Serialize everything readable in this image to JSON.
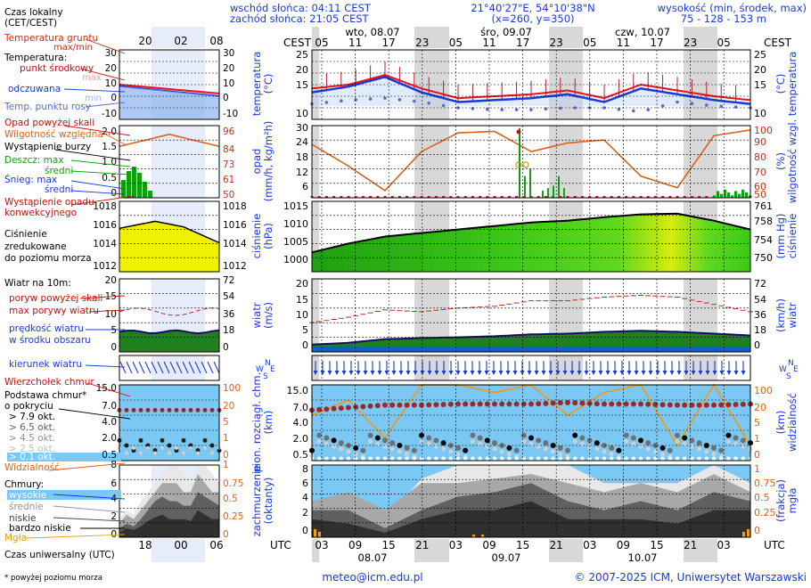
{
  "header": {
    "sunrise": "wschód słońca: 04:11 CEST",
    "sunset": "zachód słońca: 21:05 CEST",
    "coords": "21°40'27\"E, 54°10'38\"N",
    "grid": "(x=260, y=350)",
    "altitude_label": "wysokość (min, środek, max)",
    "altitude_values": "75 - 128 - 153 m"
  },
  "time_axis": {
    "cest_label": "CEST",
    "utc_label": "UTC",
    "top_hours": [
      "05",
      "11",
      "17",
      "23",
      "05",
      "11",
      "17",
      "23",
      "05",
      "11",
      "17",
      "23",
      "05"
    ],
    "bottom_hours": [
      "03",
      "09",
      "15",
      "21",
      "03",
      "09",
      "15",
      "21",
      "03",
      "09",
      "15",
      "21",
      "03"
    ],
    "top_days": [
      "wto, 08.07",
      "śro, 09.07",
      "czw, 10.07"
    ],
    "bottom_days": [
      "08.07",
      "09.07",
      "10.07"
    ]
  },
  "legend": {
    "local_time": "Czas lokalny",
    "local_time_sub": "(CET/CEST)",
    "legend_hours": [
      "20",
      "02",
      "08"
    ],
    "utc_hours": [
      "18",
      "00",
      "06"
    ],
    "soil_temp": "Temperatura gruntu",
    "soil_temp_sub": "max/min",
    "temperature": "Temperatura:",
    "temp_mid": "punkt środkowy",
    "temp_max": "max",
    "temp_min": "min",
    "temp_feels": "odczuwana",
    "dew_point": "Temp. punktu rosy",
    "precip_threshold": "Opad powyżej skali",
    "humidity": "Wilgotność względna",
    "storm": "Wystąpienie burzy",
    "rain_max": "Deszcz: max",
    "rain_mid": "średni",
    "snow_max": "Śnieg:  max",
    "snow_mid": "średni",
    "convective": "Wystąpienie opadu",
    "convective_2": "konwekcyjnego",
    "pressure_1": "Ciśnienie",
    "pressure_2": "zredukowane",
    "pressure_3": "do poziomu morza",
    "wind_title": "Wiatr na 10m:",
    "gust_threshold": "poryw powyżej skali",
    "gust_max": "max porywy wiatru",
    "wind_mean_1": "prędkość wiatru",
    "wind_mean_2": "w środku obszaru",
    "wind_dir": "kierunek wiatru",
    "cloud_top": "Wierzchołek chmur",
    "cloud_base": "Podstawa chmur*",
    "cloud_base_2": "o pokryciu",
    "okt_79": "> 7.9 okt.",
    "okt_65": "> 6.5 okt.",
    "okt_45": "> 4.5 okt.",
    "okt_25": "> 2.5 okt.",
    "okt_01": "> 0.1 okt.",
    "visibility": "Widzialność",
    "clouds": "Chmury:",
    "cl_high": "wysokie",
    "cl_mid": "średnie",
    "cl_low": "niskie",
    "cl_vlow": "bardzo niskie",
    "fog": "Mgła",
    "utc_time": "Czas uniwersalny (UTC)",
    "footnote": "* powyżej poziomu morza"
  },
  "axis_titles": {
    "temp_l": "temperatura",
    "temp_l2": "(°C)",
    "temp_r": "temperatura",
    "temp_r2": "(°C)",
    "precip_l": "opad",
    "precip_l2": "(mm/h, kg/m²h)",
    "precip_r": "wilgotność wzgl.",
    "precip_r2": "(%)",
    "press_l": "ciśnienie",
    "press_l2": "(hPa)",
    "press_r": "ciśnienie",
    "press_r2": "(mm Hg)",
    "wind_l": "wiatr",
    "wind_l2": "(m/s)",
    "wind_r": "wiatr",
    "wind_r2": "(km/h)",
    "cloud_l": "pion. rozciągł. chm.",
    "cloud_l2": "(km)",
    "cloud_r": "widzialność",
    "cloud_r2": "(km)",
    "cover_l": "zachmurzenie",
    "cover_l2": "(oktanty)",
    "cover_r": "mgła",
    "cover_r2": "(frakcja)"
  },
  "footer": {
    "email": "meteo@icm.edu.pl",
    "copyright": "© 2007-2025 ICM, Uniwersytet Warszawski"
  },
  "colors": {
    "temp_mid": "#e8101e",
    "temp_feels": "#1a3ad8",
    "dew_point": "#5a6ad0",
    "soil": "#c03018",
    "humidity": "#e0601a",
    "rain": "#10a010",
    "pressure_area": "#48d020",
    "pressure_legend": "#f0f000",
    "wind_area": "#208020",
    "wind_blue": "#0a60d0",
    "gust": "#b03020",
    "cloud_bg": "#7cc8f4",
    "visibility": "#f09a10",
    "shade": "#d8d8d8"
  },
  "chart_data": [
    {
      "type": "line",
      "title": "temperatura",
      "ylabel": "(°C)",
      "ylim": [
        9,
        27
      ],
      "x": [
        "05",
        "11",
        "17",
        "23",
        "05",
        "11",
        "17",
        "23",
        "05",
        "11",
        "17",
        "23",
        "05"
      ],
      "series": [
        {
          "name": "punkt środkowy",
          "values": [
            17,
            18,
            20.5,
            17,
            14.5,
            15,
            15.5,
            16.5,
            14.5,
            18,
            16.5,
            15,
            14
          ]
        },
        {
          "name": "odczuwana",
          "values": [
            16,
            17.5,
            20,
            16,
            13.5,
            14,
            14.5,
            15.5,
            13.5,
            17,
            15.5,
            14,
            13
          ]
        },
        {
          "name": "Temp. punktu rosy",
          "values": [
            13,
            14,
            14.5,
            13.5,
            12,
            11.5,
            11.5,
            12,
            12,
            11,
            13.5,
            12.5,
            12
          ]
        }
      ]
    },
    {
      "type": "line",
      "title": "opad",
      "ylabel": "(mm/h, kg/m²h)",
      "ylim": [
        0,
        30
      ],
      "x": [
        "05",
        "11",
        "17",
        "23",
        "05",
        "11",
        "17",
        "23",
        "05",
        "11",
        "17",
        "23",
        "05"
      ],
      "series": [
        {
          "name": "Wilgotność względna",
          "values": [
            87,
            72,
            55,
            82,
            95,
            96,
            82,
            88,
            90,
            65,
            57,
            93,
            97
          ]
        },
        {
          "name": "średni",
          "values": [
            0,
            0,
            0,
            0,
            0,
            0,
            0.5,
            2.5,
            0,
            0,
            0,
            0,
            2
          ]
        }
      ]
    },
    {
      "type": "area",
      "title": "ciśnienie",
      "ylabel": "(hPa)",
      "ylim": [
        995,
        1015
      ],
      "x": [
        "05",
        "11",
        "17",
        "23",
        "05",
        "11",
        "17",
        "23",
        "05",
        "11",
        "17",
        "23",
        "05"
      ],
      "series": [
        {
          "name": "Ciśnienie",
          "values": [
            1000.5,
            1003,
            1005,
            1006,
            1007,
            1008,
            1009,
            1009.5,
            1010.5,
            1011.3,
            1011.5,
            1009.5,
            1007
          ]
        }
      ]
    },
    {
      "type": "line",
      "title": "wiatr",
      "ylabel": "(m/s)",
      "ylim": [
        0,
        20
      ],
      "x": [
        "05",
        "11",
        "17",
        "23",
        "05",
        "11",
        "17",
        "23",
        "05",
        "11",
        "17",
        "23",
        "05"
      ],
      "series": [
        {
          "name": "max porywy wiatru",
          "values": [
            8,
            9.5,
            11.5,
            11,
            12,
            12.5,
            14,
            14,
            15,
            15.5,
            15,
            13,
            11
          ]
        },
        {
          "name": "prędkość wiatru",
          "values": [
            2,
            2.5,
            3.5,
            3.8,
            4,
            4.3,
            4.8,
            5,
            5.5,
            5.8,
            5.5,
            5,
            4.5
          ]
        }
      ]
    },
    {
      "type": "line",
      "title": "pion. rozciągł. chm.",
      "ylabel": "(km)",
      "ylim": [
        0,
        15
      ],
      "x": [
        "05",
        "11",
        "17",
        "23",
        "05",
        "11",
        "17",
        "23",
        "05",
        "11",
        "17",
        "23",
        "05"
      ],
      "series": [
        {
          "name": "Wierzchołek chmur",
          "values": [
            10,
            10.5,
            11,
            11,
            11.2,
            11.2,
            11.2,
            11.5,
            11.2,
            11.2,
            11,
            11,
            11.2
          ]
        },
        {
          "name": "Widzialność",
          "values": [
            60,
            80,
            30,
            100,
            100,
            90,
            100,
            60,
            90,
            100,
            20,
            100,
            20
          ]
        }
      ]
    },
    {
      "type": "area",
      "title": "zachmurzenie",
      "ylabel": "(oktanty)",
      "ylim": [
        0,
        8
      ],
      "x": [
        "05",
        "11",
        "17",
        "23",
        "05",
        "11",
        "17",
        "23",
        "05",
        "11",
        "17",
        "23",
        "05"
      ],
      "series": [
        {
          "name": "wysokie",
          "values": [
            3.5,
            5,
            2,
            6.5,
            8,
            8,
            8,
            8,
            6,
            6,
            6,
            8,
            6
          ]
        },
        {
          "name": "średnie",
          "values": [
            4,
            5,
            3,
            6,
            6,
            6.5,
            7,
            6,
            5,
            6,
            5,
            7,
            5
          ]
        },
        {
          "name": "niskie",
          "values": [
            3,
            3,
            1,
            3,
            4.5,
            5,
            6,
            4,
            3,
            4,
            3,
            5,
            4
          ]
        },
        {
          "name": "bardzo niskie",
          "values": [
            2,
            1.5,
            0.5,
            2,
            3,
            3,
            4,
            2,
            2,
            2,
            1.5,
            3,
            3
          ]
        }
      ]
    }
  ]
}
